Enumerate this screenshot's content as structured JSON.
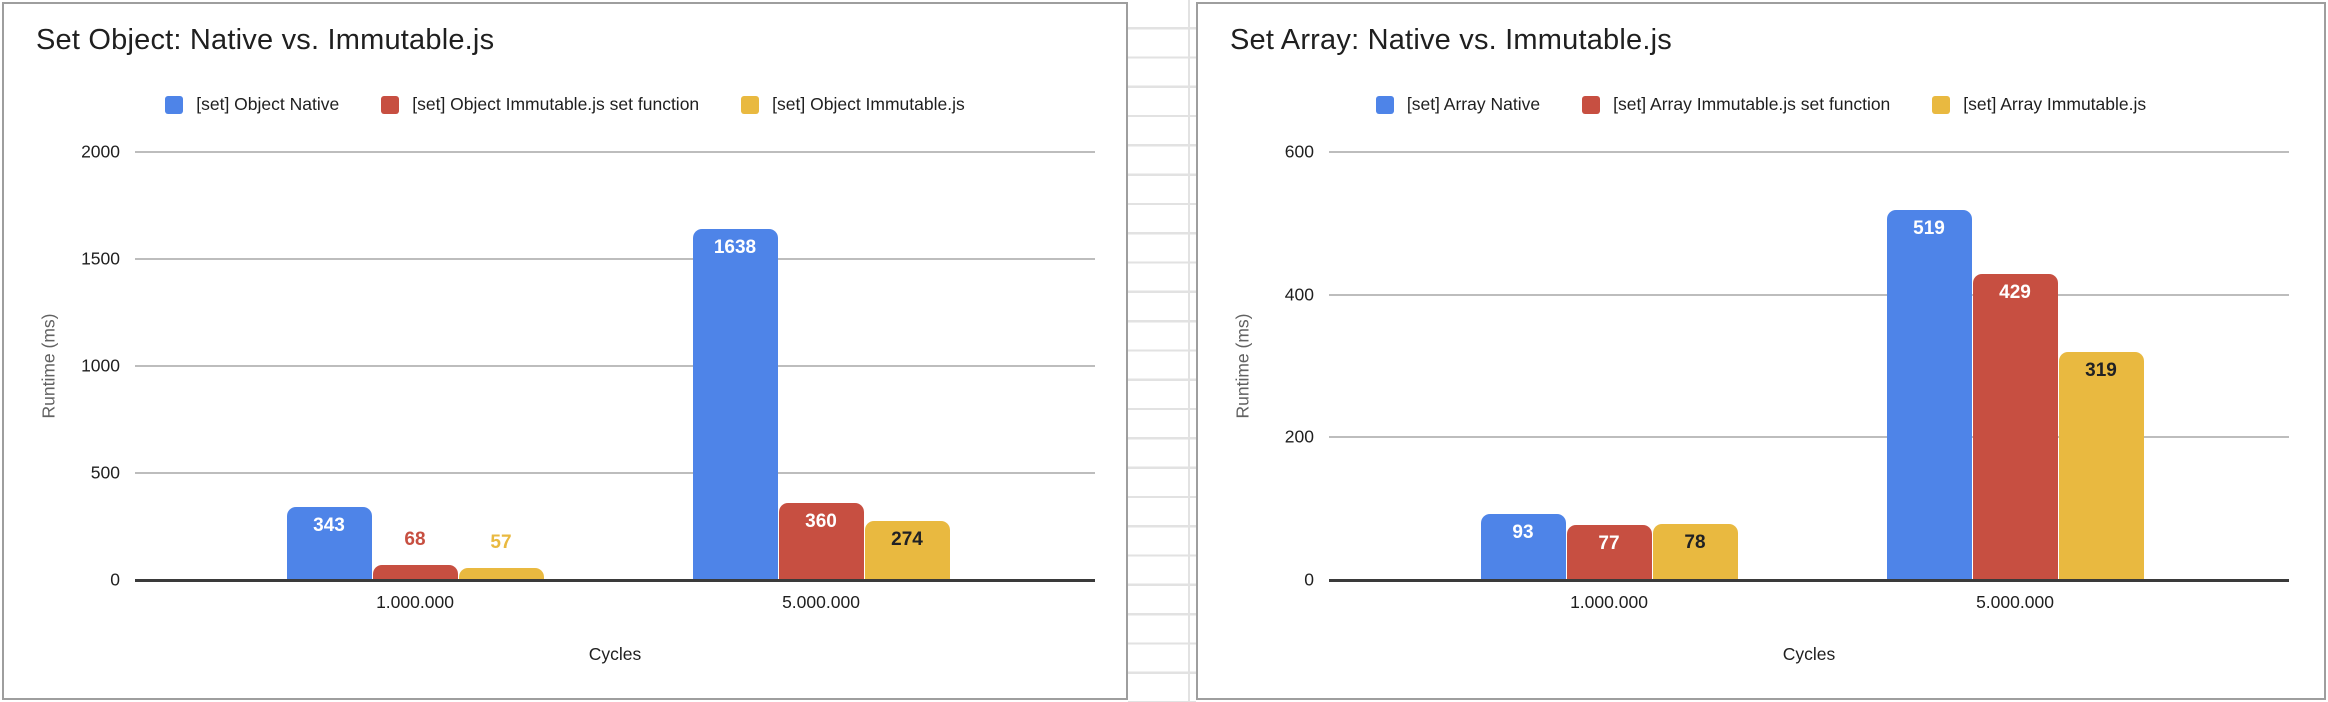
{
  "chart_data": [
    {
      "type": "bar",
      "title": "Set Object: Native vs. Immutable.js",
      "categories": [
        "1.000.000",
        "5.000.000"
      ],
      "series": [
        {
          "name": "[set] Object Native",
          "color": "#4e84e8",
          "values": [
            343,
            1638
          ]
        },
        {
          "name": "[set] Object Immutable.js set function",
          "color": "#c74f41",
          "values": [
            68,
            360
          ]
        },
        {
          "name": "[set] Object Immutable.js",
          "color": "#e9b940",
          "values": [
            57,
            274
          ]
        }
      ],
      "xlabel": "Cycles",
      "ylabel": "Runtime (ms)",
      "ylim": [
        0,
        2000
      ],
      "yticks": [
        0,
        500,
        1000,
        1500,
        2000
      ],
      "grid": true,
      "legend_position": "top"
    },
    {
      "type": "bar",
      "title": "Set Array: Native vs. Immutable.js",
      "categories": [
        "1.000.000",
        "5.000.000"
      ],
      "series": [
        {
          "name": "[set] Array Native",
          "color": "#4e84e8",
          "values": [
            93,
            519
          ]
        },
        {
          "name": "[set] Array Immutable.js set function",
          "color": "#c74f41",
          "values": [
            77,
            429
          ]
        },
        {
          "name": "[set] Array Immutable.js",
          "color": "#e9b940",
          "values": [
            78,
            319
          ]
        }
      ],
      "xlabel": "Cycles",
      "ylabel": "Runtime (ms)",
      "ylim": [
        0,
        600
      ],
      "yticks": [
        0,
        200,
        400,
        600
      ],
      "grid": true,
      "legend_position": "top"
    }
  ],
  "colors": {
    "bar_blue": "#4e84e8",
    "bar_red": "#c74f41",
    "bar_yellow": "#e9b940",
    "label_inside_light": "#ffffff",
    "label_inside_dark": "#202124",
    "gridline": "#bdbdbd",
    "axis_line": "#3a3a3a",
    "card_border": "#9e9e9e",
    "sheet_gridline": "#e2e2e2"
  }
}
